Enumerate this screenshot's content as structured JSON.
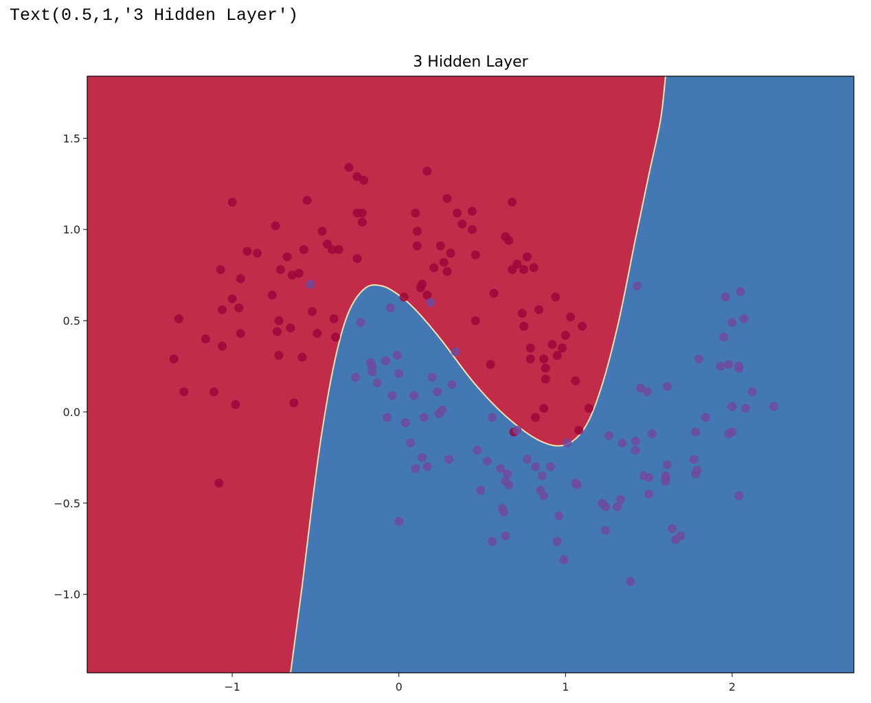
{
  "output_text": "Text(0.5,1,'3 Hidden Layer')",
  "chart_data": {
    "type": "scatter",
    "title": "3 Hidden Layer",
    "xlabel": "",
    "ylabel": "",
    "xlim": [
      -1.87,
      2.73
    ],
    "ylim": [
      -1.43,
      1.84
    ],
    "xticks": [
      -1,
      0,
      1,
      2
    ],
    "xtick_labels": [
      "−1",
      "0",
      "1",
      "2"
    ],
    "yticks": [
      1.5,
      1.0,
      0.5,
      0.0,
      -0.5,
      -1.0
    ],
    "ytick_labels": [
      "1.5",
      "1.0",
      "0.5",
      "0.0",
      "−0.5",
      "−1.0"
    ],
    "grid": false,
    "legend": "none",
    "region_colors": {
      "class_0": "#c22b49",
      "class_1": "#4478b4"
    },
    "point_colors": {
      "class_0": "#a0053a",
      "class_1": "#6f4a9e"
    },
    "decision_boundary": [
      [
        -0.65,
        -1.43
      ],
      [
        -0.58,
        -0.95
      ],
      [
        -0.52,
        -0.5
      ],
      [
        -0.46,
        -0.1
      ],
      [
        -0.38,
        0.3
      ],
      [
        -0.3,
        0.55
      ],
      [
        -0.2,
        0.68
      ],
      [
        -0.1,
        0.69
      ],
      [
        0.0,
        0.64
      ],
      [
        0.1,
        0.56
      ],
      [
        0.25,
        0.4
      ],
      [
        0.45,
        0.16
      ],
      [
        0.65,
        -0.03
      ],
      [
        0.85,
        -0.16
      ],
      [
        1.0,
        -0.18
      ],
      [
        1.12,
        -0.08
      ],
      [
        1.22,
        0.15
      ],
      [
        1.32,
        0.5
      ],
      [
        1.42,
        0.95
      ],
      [
        1.5,
        1.3
      ],
      [
        1.57,
        1.6
      ],
      [
        1.6,
        1.84
      ]
    ],
    "series": [
      {
        "class": 0,
        "points": [
          [
            -1.35,
            0.29
          ],
          [
            -1.32,
            0.51
          ],
          [
            -1.29,
            0.11
          ],
          [
            -1.16,
            0.4
          ],
          [
            -1.11,
            0.11
          ],
          [
            -1.08,
            -0.39
          ],
          [
            -1.07,
            0.78
          ],
          [
            -1.06,
            0.56
          ],
          [
            -1.06,
            0.36
          ],
          [
            -1.0,
            1.15
          ],
          [
            -1.0,
            0.62
          ],
          [
            -0.98,
            0.04
          ],
          [
            -0.96,
            0.57
          ],
          [
            -0.95,
            0.73
          ],
          [
            -0.95,
            0.43
          ],
          [
            -0.91,
            0.88
          ],
          [
            -0.85,
            0.87
          ],
          [
            -0.76,
            0.64
          ],
          [
            -0.74,
            1.02
          ],
          [
            -0.73,
            0.44
          ],
          [
            -0.72,
            0.5
          ],
          [
            -0.72,
            0.31
          ],
          [
            -0.71,
            0.78
          ],
          [
            -0.67,
            0.85
          ],
          [
            -0.65,
            0.46
          ],
          [
            -0.64,
            0.75
          ],
          [
            -0.63,
            0.05
          ],
          [
            -0.6,
            0.76
          ],
          [
            -0.58,
            0.3
          ],
          [
            -0.57,
            0.89
          ],
          [
            -0.55,
            1.16
          ],
          [
            -0.52,
            0.55
          ],
          [
            -0.49,
            0.43
          ],
          [
            -0.46,
            0.99
          ],
          [
            -0.43,
            0.92
          ],
          [
            -0.4,
            0.89
          ],
          [
            -0.39,
            0.51
          ],
          [
            -0.38,
            0.41
          ],
          [
            -0.36,
            0.89
          ],
          [
            -0.3,
            1.34
          ],
          [
            -0.25,
            1.29
          ],
          [
            -0.22,
            1.09
          ],
          [
            -0.21,
            1.27
          ],
          [
            -0.25,
            0.84
          ],
          [
            -0.25,
            1.09
          ],
          [
            -0.22,
            1.04
          ],
          [
            0.03,
            0.63
          ],
          [
            0.1,
            1.09
          ],
          [
            0.11,
            0.99
          ],
          [
            0.11,
            0.91
          ],
          [
            0.13,
            0.68
          ],
          [
            0.14,
            0.7
          ],
          [
            0.17,
            1.32
          ],
          [
            0.17,
            0.64
          ],
          [
            0.21,
            0.79
          ],
          [
            0.25,
            0.91
          ],
          [
            0.27,
            0.82
          ],
          [
            0.29,
            1.17
          ],
          [
            0.29,
            0.77
          ],
          [
            0.31,
            0.87
          ],
          [
            0.35,
            1.09
          ],
          [
            0.38,
            1.03
          ],
          [
            0.44,
            1.1
          ],
          [
            0.44,
            1.0
          ],
          [
            0.46,
            0.86
          ],
          [
            0.46,
            0.5
          ],
          [
            0.55,
            0.26
          ],
          [
            0.57,
            0.65
          ],
          [
            0.64,
            0.96
          ],
          [
            0.66,
            0.94
          ],
          [
            0.68,
            1.15
          ],
          [
            0.68,
            0.78
          ],
          [
            0.71,
            0.81
          ],
          [
            0.74,
            0.54
          ],
          [
            0.75,
            0.47
          ],
          [
            0.75,
            0.78
          ],
          [
            0.77,
            0.85
          ],
          [
            0.79,
            0.35
          ],
          [
            0.79,
            0.29
          ],
          [
            0.81,
            0.79
          ],
          [
            0.82,
            -0.03
          ],
          [
            0.84,
            0.56
          ],
          [
            0.87,
            0.29
          ],
          [
            0.87,
            0.02
          ],
          [
            0.88,
            0.24
          ],
          [
            0.88,
            0.18
          ],
          [
            0.92,
            0.37
          ],
          [
            0.94,
            0.63
          ],
          [
            0.95,
            0.31
          ],
          [
            0.98,
            0.35
          ],
          [
            1.0,
            0.42
          ],
          [
            1.03,
            0.52
          ],
          [
            1.06,
            0.17
          ],
          [
            1.08,
            -0.1
          ],
          [
            1.1,
            0.47
          ],
          [
            1.14,
            0.02
          ],
          [
            0.69,
            -0.11
          ]
        ]
      },
      {
        "class": 1,
        "points": [
          [
            -0.53,
            0.7
          ],
          [
            -0.26,
            0.19
          ],
          [
            -0.23,
            0.49
          ],
          [
            -0.17,
            0.27
          ],
          [
            -0.16,
            0.25
          ],
          [
            -0.16,
            0.22
          ],
          [
            -0.13,
            0.16
          ],
          [
            -0.08,
            0.28
          ],
          [
            -0.07,
            -0.03
          ],
          [
            -0.05,
            0.57
          ],
          [
            -0.04,
            0.09
          ],
          [
            -0.01,
            0.31
          ],
          [
            0.0,
            0.21
          ],
          [
            0.0,
            -0.6
          ],
          [
            0.04,
            -0.06
          ],
          [
            0.07,
            -0.17
          ],
          [
            0.09,
            0.09
          ],
          [
            0.1,
            -0.31
          ],
          [
            0.14,
            -0.25
          ],
          [
            0.15,
            -0.03
          ],
          [
            0.17,
            -0.3
          ],
          [
            0.19,
            0.6
          ],
          [
            0.2,
            0.19
          ],
          [
            0.23,
            0.11
          ],
          [
            0.24,
            -0.01
          ],
          [
            0.26,
            0.01
          ],
          [
            0.3,
            -0.26
          ],
          [
            0.32,
            0.15
          ],
          [
            0.34,
            0.33
          ],
          [
            0.47,
            -0.21
          ],
          [
            0.49,
            -0.43
          ],
          [
            0.53,
            -0.27
          ],
          [
            0.56,
            -0.03
          ],
          [
            0.56,
            -0.71
          ],
          [
            0.61,
            -0.31
          ],
          [
            0.62,
            -0.53
          ],
          [
            0.63,
            -0.55
          ],
          [
            0.64,
            -0.38
          ],
          [
            0.64,
            -0.68
          ],
          [
            0.65,
            -0.34
          ],
          [
            0.66,
            -0.4
          ],
          [
            0.71,
            -0.1
          ],
          [
            0.77,
            -0.26
          ],
          [
            0.82,
            -0.3
          ],
          [
            0.85,
            -0.43
          ],
          [
            0.86,
            -0.35
          ],
          [
            0.87,
            -0.46
          ],
          [
            0.91,
            -0.3
          ],
          [
            0.95,
            -0.71
          ],
          [
            0.96,
            -0.57
          ],
          [
            0.99,
            -0.81
          ],
          [
            1.01,
            -0.17
          ],
          [
            1.06,
            -0.39
          ],
          [
            1.07,
            -0.4
          ],
          [
            1.22,
            -0.5
          ],
          [
            1.24,
            -0.52
          ],
          [
            1.24,
            -0.65
          ],
          [
            1.26,
            -0.13
          ],
          [
            1.31,
            -0.52
          ],
          [
            1.33,
            -0.48
          ],
          [
            1.34,
            -0.17
          ],
          [
            1.39,
            -0.93
          ],
          [
            1.42,
            -0.21
          ],
          [
            1.42,
            -0.16
          ],
          [
            1.43,
            0.69
          ],
          [
            1.45,
            0.13
          ],
          [
            1.47,
            -0.35
          ],
          [
            1.49,
            0.11
          ],
          [
            1.5,
            -0.36
          ],
          [
            1.5,
            -0.45
          ],
          [
            1.52,
            -0.12
          ],
          [
            1.6,
            -0.35
          ],
          [
            1.6,
            -0.36
          ],
          [
            1.6,
            -0.38
          ],
          [
            1.61,
            0.14
          ],
          [
            1.61,
            -0.29
          ],
          [
            1.64,
            -0.64
          ],
          [
            1.66,
            -0.7
          ],
          [
            1.69,
            -0.68
          ],
          [
            1.77,
            -0.26
          ],
          [
            1.78,
            -0.11
          ],
          [
            1.78,
            -0.34
          ],
          [
            1.79,
            -0.32
          ],
          [
            1.8,
            0.29
          ],
          [
            1.84,
            -0.03
          ],
          [
            1.93,
            0.25
          ],
          [
            1.95,
            0.41
          ],
          [
            1.96,
            0.63
          ],
          [
            1.98,
            -0.12
          ],
          [
            1.98,
            0.26
          ],
          [
            2.0,
            -0.11
          ],
          [
            2.0,
            0.49
          ],
          [
            2.0,
            0.03
          ],
          [
            2.04,
            0.25
          ],
          [
            2.04,
            0.24
          ],
          [
            2.04,
            -0.46
          ],
          [
            2.05,
            0.66
          ],
          [
            2.07,
            0.51
          ],
          [
            2.08,
            0.02
          ],
          [
            2.12,
            0.11
          ],
          [
            2.25,
            0.03
          ]
        ]
      }
    ]
  }
}
